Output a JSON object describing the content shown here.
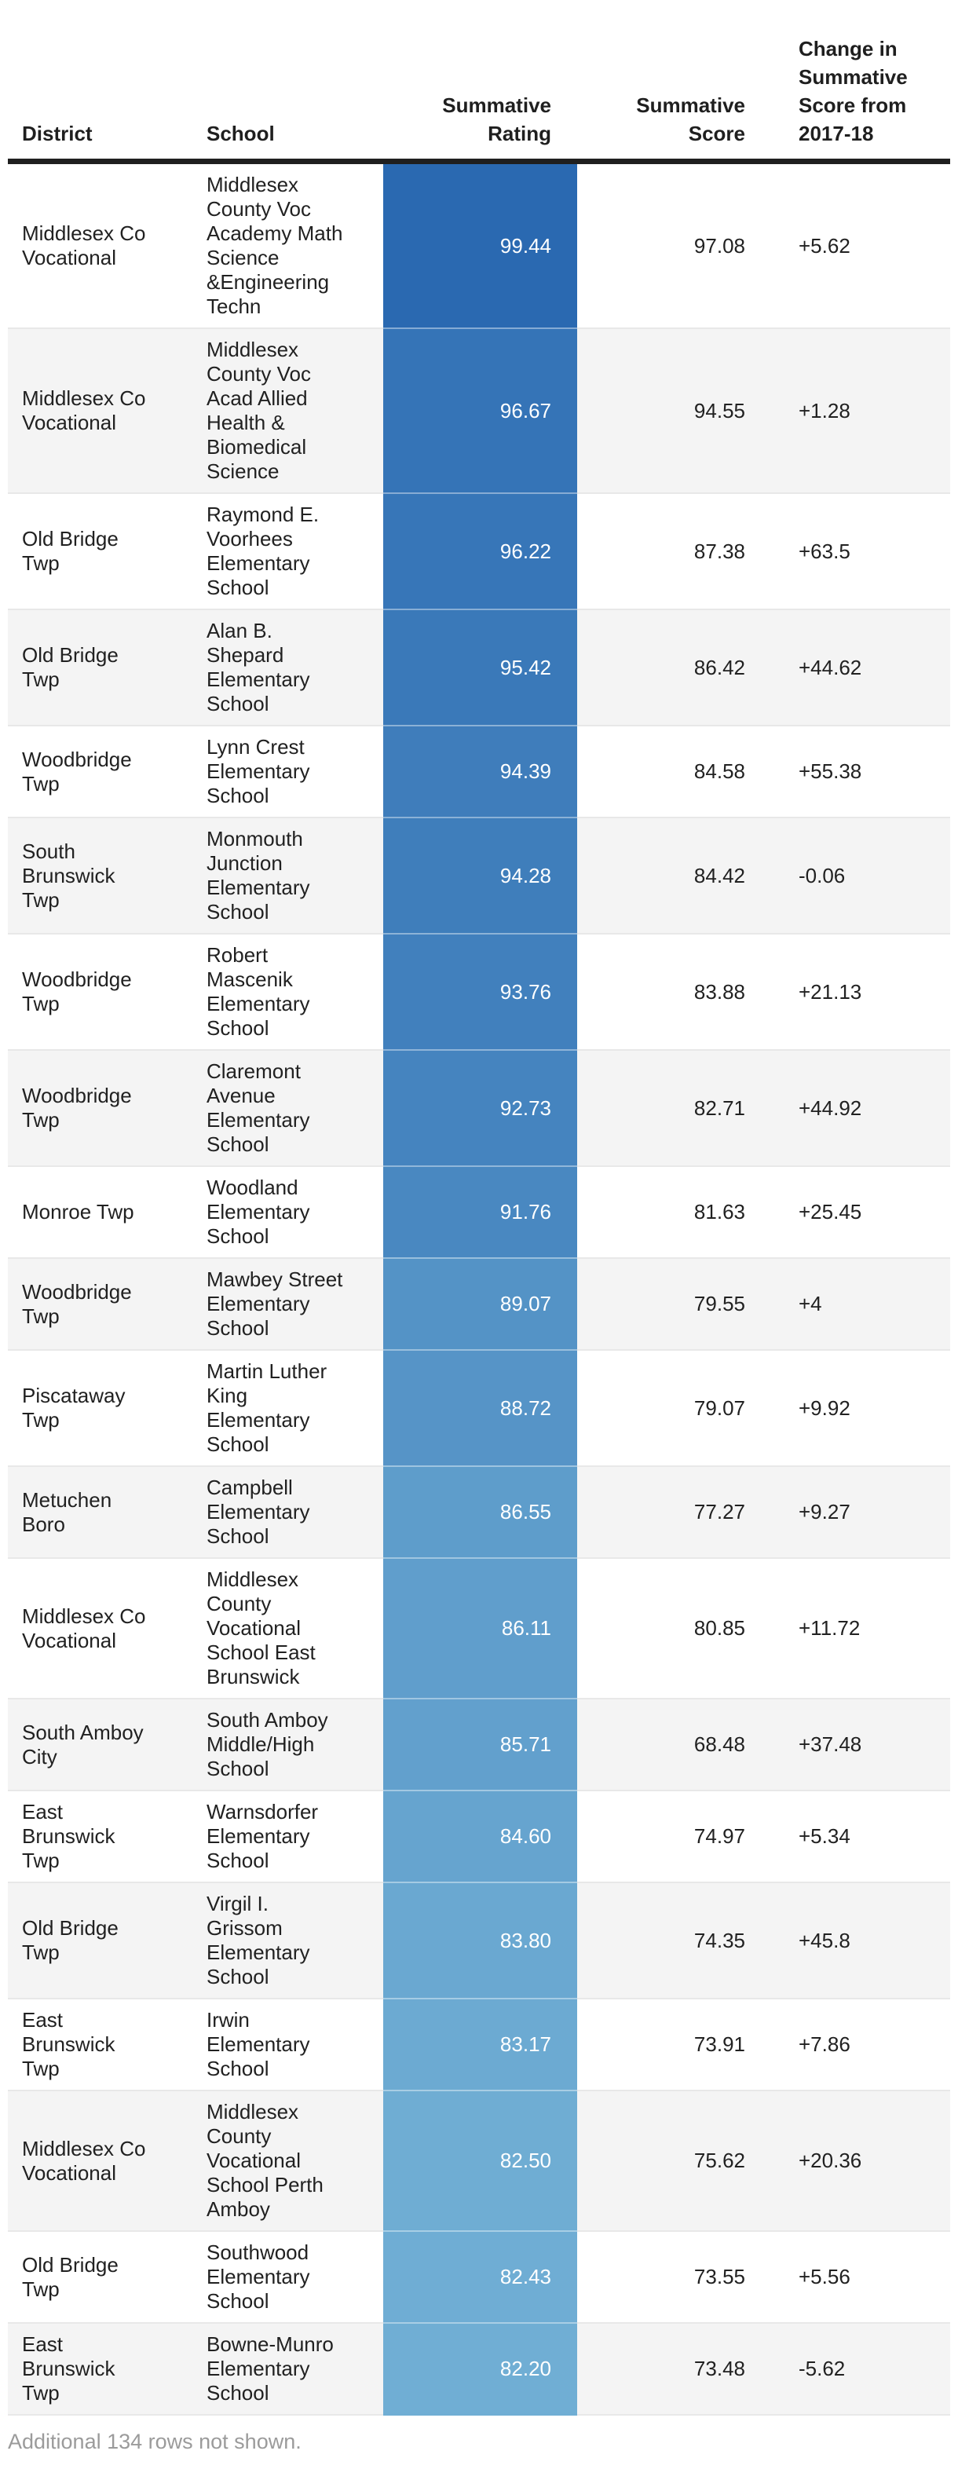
{
  "colors": {
    "text": "#212121",
    "header_rule": "#1F1F1F",
    "row_alt_bg": "#F4F4F4",
    "row_border": "#E8E8E8",
    "rating_text": "#FFFFFF",
    "footnote_text": "#9B9B9B",
    "rating_scale_dark": "#2A69B1",
    "rating_scale_light": "#70AED4"
  },
  "chart_data": {
    "type": "table",
    "title": "",
    "columns": [
      "District",
      "School",
      "Summative Rating",
      "Summative Score",
      "Change in Summative Score from 2017-18"
    ],
    "color_scale": {
      "column": "Summative Rating",
      "min_value": 82.2,
      "max_value": 99.44,
      "min_color": "#70AED4",
      "max_color": "#2A69B1"
    },
    "rows": [
      {
        "district": "Middlesex Co Vocational",
        "school": "Middlesex County Voc Academy Math Science &Engineering Techn",
        "rating": "99.44",
        "score": "97.08",
        "change": "+5.62"
      },
      {
        "district": "Middlesex Co Vocational",
        "school": "Middlesex County Voc Acad Allied Health & Biomedical Science",
        "rating": "96.67",
        "score": "94.55",
        "change": "+1.28"
      },
      {
        "district": "Old Bridge Twp",
        "school": "Raymond E. Voorhees Elementary School",
        "rating": "96.22",
        "score": "87.38",
        "change": "+63.5"
      },
      {
        "district": "Old Bridge Twp",
        "school": "Alan B. Shepard Elementary School",
        "rating": "95.42",
        "score": "86.42",
        "change": "+44.62"
      },
      {
        "district": "Woodbridge Twp",
        "school": "Lynn Crest Elementary School",
        "rating": "94.39",
        "score": "84.58",
        "change": "+55.38"
      },
      {
        "district": "South Brunswick Twp",
        "school": "Monmouth Junction Elementary School",
        "rating": "94.28",
        "score": "84.42",
        "change": "-0.06"
      },
      {
        "district": "Woodbridge Twp",
        "school": "Robert Mascenik Elementary School",
        "rating": "93.76",
        "score": "83.88",
        "change": "+21.13"
      },
      {
        "district": "Woodbridge Twp",
        "school": "Claremont Avenue Elementary School",
        "rating": "92.73",
        "score": "82.71",
        "change": "+44.92"
      },
      {
        "district": "Monroe Twp",
        "school": "Woodland Elementary School",
        "rating": "91.76",
        "score": "81.63",
        "change": "+25.45"
      },
      {
        "district": "Woodbridge Twp",
        "school": "Mawbey Street Elementary School",
        "rating": "89.07",
        "score": "79.55",
        "change": "+4"
      },
      {
        "district": "Piscataway Twp",
        "school": "Martin Luther King Elementary School",
        "rating": "88.72",
        "score": "79.07",
        "change": "+9.92"
      },
      {
        "district": "Metuchen Boro",
        "school": "Campbell Elementary School",
        "rating": "86.55",
        "score": "77.27",
        "change": "+9.27"
      },
      {
        "district": "Middlesex Co Vocational",
        "school": "Middlesex County Vocational School East Brunswick",
        "rating": "86.11",
        "score": "80.85",
        "change": "+11.72"
      },
      {
        "district": "South Amboy City",
        "school": "South Amboy Middle/High School",
        "rating": "85.71",
        "score": "68.48",
        "change": "+37.48"
      },
      {
        "district": "East Brunswick Twp",
        "school": "Warnsdorfer Elementary School",
        "rating": "84.60",
        "score": "74.97",
        "change": "+5.34"
      },
      {
        "district": "Old Bridge Twp",
        "school": "Virgil I. Grissom Elementary School",
        "rating": "83.80",
        "score": "74.35",
        "change": "+45.8"
      },
      {
        "district": "East Brunswick Twp",
        "school": "Irwin Elementary School",
        "rating": "83.17",
        "score": "73.91",
        "change": "+7.86"
      },
      {
        "district": "Middlesex Co Vocational",
        "school": "Middlesex County Vocational School Perth Amboy",
        "rating": "82.50",
        "score": "75.62",
        "change": "+20.36"
      },
      {
        "district": "Old Bridge Twp",
        "school": "Southwood Elementary School",
        "rating": "82.43",
        "score": "73.55",
        "change": "+5.56"
      },
      {
        "district": "East Brunswick Twp",
        "school": "Bowne-Munro Elementary School",
        "rating": "82.20",
        "score": "73.48",
        "change": "-5.62"
      }
    ],
    "note": "Additional 134 rows not shown."
  }
}
